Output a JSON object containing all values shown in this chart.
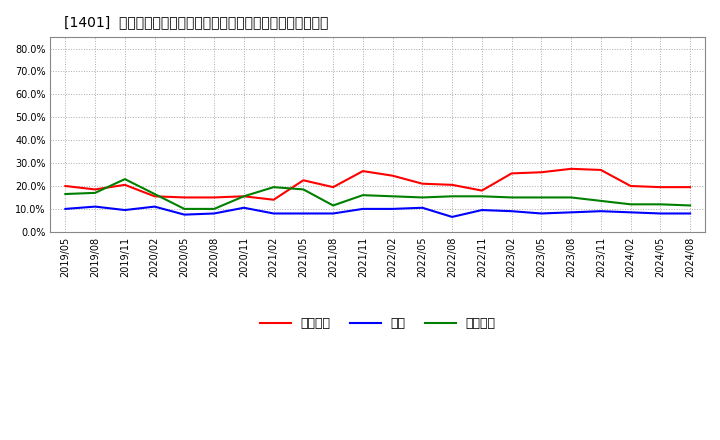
{
  "title": "[1401]  売上債権、在庫、買入債務の総資産に対する比率の推移",
  "legend_labels": [
    "売上債権",
    "在庫",
    "買入債務"
  ],
  "line_colors": [
    "#ff0000",
    "#0000ff",
    "#008000"
  ],
  "background_color": "#ffffff",
  "plot_bg_color": "#ffffff",
  "grid_color": "#aaaaaa",
  "ylim": [
    0.0,
    0.85
  ],
  "yticks": [
    0.0,
    0.1,
    0.2,
    0.3,
    0.4,
    0.5,
    0.6,
    0.7,
    0.8
  ],
  "dates": [
    "2019/05",
    "2019/08",
    "2019/11",
    "2020/02",
    "2020/05",
    "2020/08",
    "2020/11",
    "2021/02",
    "2021/05",
    "2021/08",
    "2021/11",
    "2022/02",
    "2022/05",
    "2022/08",
    "2022/11",
    "2023/02",
    "2023/05",
    "2023/08",
    "2023/11",
    "2024/02",
    "2024/05",
    "2024/08"
  ],
  "series_urikake": [
    0.2,
    0.185,
    0.205,
    0.155,
    0.15,
    0.15,
    0.155,
    0.14,
    0.225,
    0.195,
    0.265,
    0.245,
    0.21,
    0.205,
    0.18,
    0.255,
    0.26,
    0.275,
    0.27,
    0.2,
    0.195,
    0.195
  ],
  "series_zaiko": [
    0.1,
    0.11,
    0.095,
    0.11,
    0.075,
    0.08,
    0.105,
    0.08,
    0.08,
    0.08,
    0.1,
    0.1,
    0.105,
    0.065,
    0.095,
    0.09,
    0.08,
    0.085,
    0.09,
    0.085,
    0.08,
    0.08
  ],
  "series_kaiire": [
    0.165,
    0.17,
    0.23,
    0.165,
    0.1,
    0.1,
    0.155,
    0.195,
    0.185,
    0.115,
    0.16,
    0.155,
    0.15,
    0.155,
    0.155,
    0.15,
    0.15,
    0.15,
    0.135,
    0.12,
    0.12,
    0.115
  ]
}
